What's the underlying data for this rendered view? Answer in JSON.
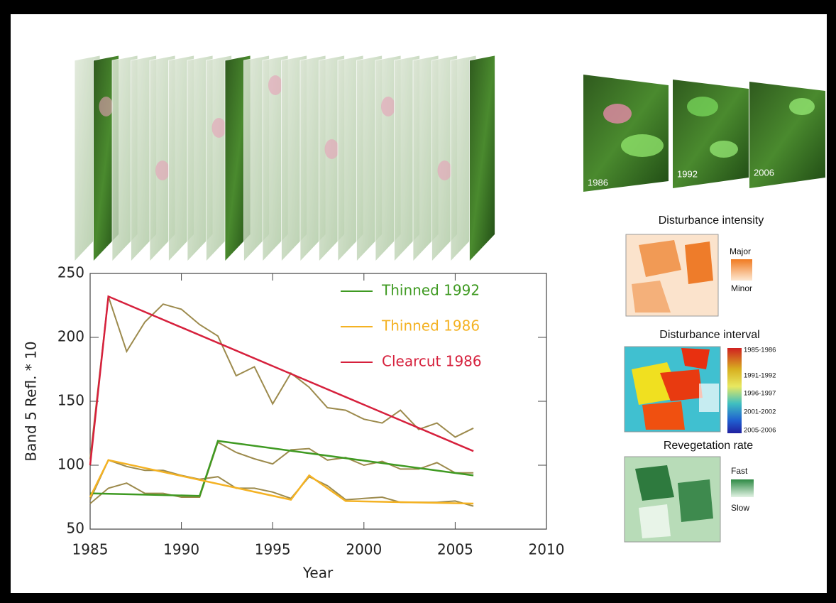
{
  "chart_data": {
    "type": "line",
    "xlabel": "Year",
    "ylabel": "Band 5 Refl. * 10",
    "xlim": [
      1985,
      2010
    ],
    "ylim": [
      50,
      250
    ],
    "xticks": [
      1985,
      1990,
      1995,
      2000,
      2005,
      2010
    ],
    "yticks": [
      50,
      100,
      150,
      200,
      250
    ],
    "x": [
      1985,
      1986,
      1987,
      1988,
      1989,
      1990,
      1991,
      1992,
      1993,
      1994,
      1995,
      1996,
      1997,
      1998,
      1999,
      2000,
      2001,
      2002,
      2003,
      2004,
      2005,
      2006
    ],
    "observed_color": "#9c8a4c",
    "legend": "upper right",
    "series": [
      {
        "name": "Thinned 1992",
        "color": "#3f9a22",
        "x": [
          1985,
          1991,
          1992,
          2006
        ],
        "values": [
          78,
          76,
          119,
          92
        ],
        "observed": [
          70,
          82,
          86,
          78,
          78,
          75,
          75,
          118,
          110,
          105,
          101,
          112,
          113,
          104,
          106,
          100,
          103,
          97,
          97,
          102,
          94,
          94
        ]
      },
      {
        "name": "Thinned 1986",
        "color": "#f4b223",
        "x": [
          1985,
          1986,
          1996,
          1997,
          1999,
          2006
        ],
        "values": [
          75,
          104,
          73,
          92,
          72,
          70
        ],
        "observed": [
          73,
          104,
          99,
          96,
          96,
          92,
          89,
          91,
          82,
          82,
          79,
          74,
          91,
          84,
          73,
          74,
          75,
          71,
          71,
          71,
          72,
          68
        ]
      },
      {
        "name": "Clearcut 1986",
        "color": "#d6203c",
        "x": [
          1985,
          1986,
          2006
        ],
        "values": [
          100,
          232,
          111
        ],
        "observed": [
          105,
          232,
          189,
          212,
          226,
          222,
          210,
          201,
          170,
          177,
          148,
          172,
          161,
          145,
          143,
          136,
          133,
          143,
          128,
          133,
          122,
          129
        ]
      }
    ]
  },
  "map_labels": [
    "1986",
    "1992",
    "2006"
  ],
  "panels": {
    "intensity": {
      "title": "Disturbance intensity",
      "labels": [
        "Major",
        "Minor"
      ]
    },
    "interval": {
      "title": "Disturbance interval",
      "labels": [
        "1985-1986",
        "1991-1992",
        "1996-1997",
        "2001-2002",
        "2005-2006"
      ]
    },
    "revegetation": {
      "title": "Revegetation rate",
      "labels": [
        "Fast",
        "Slow"
      ]
    }
  }
}
